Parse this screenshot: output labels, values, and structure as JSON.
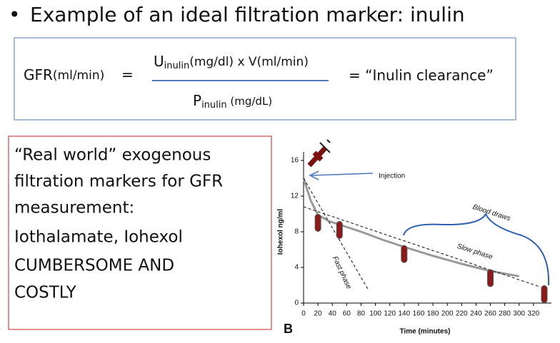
{
  "bullet": "Example of an ideal filtration marker: inulin",
  "formula": {
    "lhs": "GFR",
    "lhs_unit": "(ml/min)",
    "equals": "=",
    "numerator": {
      "symbol": "U",
      "subscript": "inulin",
      "rest": "(mg/dl)  x  V(ml/min)"
    },
    "denominator": {
      "symbol": "P",
      "subscript": "inulin",
      "rest": " (mg/dL)"
    },
    "rhs": "= “Inulin clearance”"
  },
  "box_lines": [
    "“Real world” exogenous",
    "filtration markers for GFR",
    "measurement:",
    "Iothalamate, Iohexol",
    "CUMBERSOME AND",
    "COSTLY"
  ],
  "chart_data": {
    "type": "line",
    "panel_label": "B",
    "xlabel": "Time (minutes)",
    "ylabel": "Iohexol ng/ml",
    "annotations": [
      "Injection",
      "Blood draws",
      "Slow phase",
      "Fast phase"
    ],
    "xlim": [
      0,
      340
    ],
    "xticks": [
      0,
      20,
      40,
      60,
      80,
      100,
      120,
      140,
      160,
      180,
      200,
      220,
      240,
      260,
      280,
      300,
      320
    ],
    "ylim": [
      0,
      16
    ],
    "yticks": [
      0,
      4,
      8,
      12,
      16
    ],
    "series": [
      {
        "color": "#999999",
        "x": [
          0,
          10,
          20,
          35,
          50,
          80,
          110,
          140,
          180,
          220,
          260,
          300
        ],
        "values": [
          14,
          11.5,
          9.9,
          9.2,
          8.8,
          8.0,
          7.1,
          6.3,
          5.3,
          4.4,
          3.6,
          3.0
        ]
      },
      {
        "color": "#222222",
        "x": [
          0,
          90
        ],
        "values": [
          14,
          1.5
        ]
      },
      {
        "color": "#222222",
        "x": [
          0,
          330
        ],
        "values": [
          10.8,
          1.8
        ]
      }
    ],
    "samples": {
      "color": "#8b1a1a",
      "x": [
        20,
        50,
        140,
        260,
        335
      ],
      "values": [
        9.8,
        9.0,
        6.3,
        3.6,
        1.8
      ]
    }
  }
}
